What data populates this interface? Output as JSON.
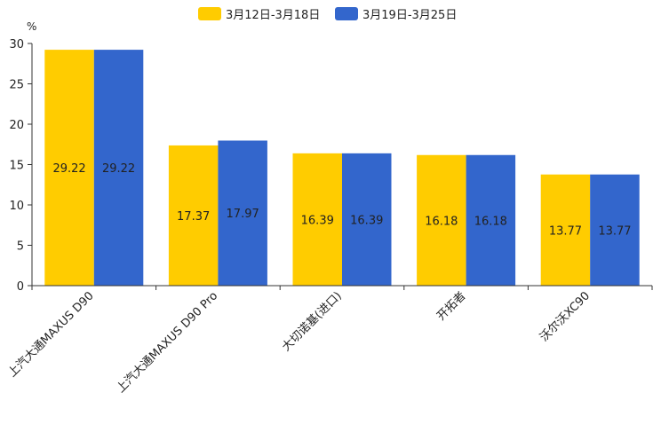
{
  "chart_data": {
    "type": "bar",
    "title": "",
    "xlabel": "",
    "ylabel": "%",
    "ylim": [
      0,
      30
    ],
    "yticks": [
      0,
      5,
      10,
      15,
      20,
      25,
      30
    ],
    "grid": false,
    "legend_position": "top-center",
    "categories": [
      "上汽大通MAXUS D90",
      "上汽大通MAXUS D90 Pro",
      "大切诺基(进口)",
      "开拓者",
      "沃尔沃XC90"
    ],
    "series": [
      {
        "name": "3月12日-3月18日",
        "color": "#FFCC00",
        "values": [
          29.22,
          17.37,
          16.39,
          16.18,
          13.77
        ]
      },
      {
        "name": "3月19日-3月25日",
        "color": "#3366CC",
        "values": [
          29.22,
          17.97,
          16.39,
          16.18,
          13.77
        ]
      }
    ],
    "data_labels": [
      [
        "29.22",
        "17.37",
        "16.39",
        "16.18",
        "13.77"
      ],
      [
        "29.22",
        "17.97",
        "16.39",
        "16.18",
        "13.77"
      ]
    ]
  }
}
